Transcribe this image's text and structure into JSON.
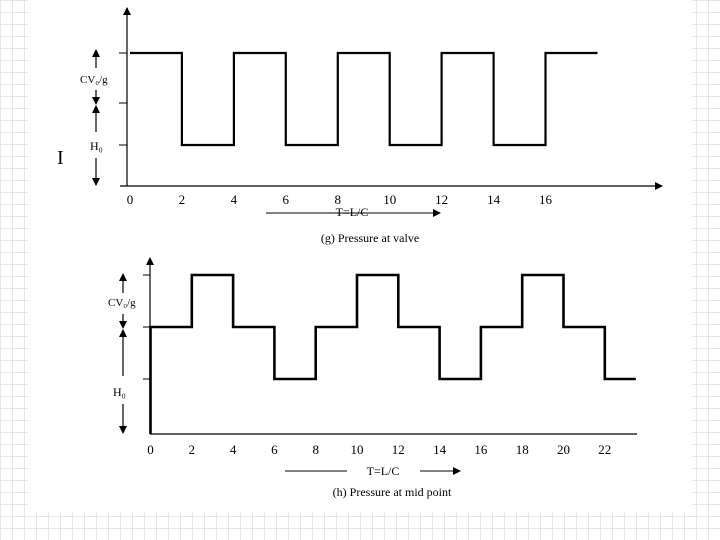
{
  "chart_data": [
    {
      "type": "line",
      "panel": "g",
      "caption": "(g) Pressure at valve",
      "x_ticks": [
        "0",
        "2",
        "4",
        "6",
        "8",
        "10",
        "12",
        "14",
        "16"
      ],
      "x_axis_label": "T=L/C",
      "y_labels": {
        "upper": "CV₀/g",
        "lower": "H₀"
      },
      "side_mark": "I",
      "xlim": [
        0,
        20.5
      ],
      "levels": {
        "low": 0,
        "mid": 1,
        "high": 2
      },
      "series": [
        {
          "x": [
            0,
            2,
            2,
            4,
            4,
            6,
            6,
            8,
            8,
            10,
            10,
            12,
            12,
            14,
            14,
            16,
            16,
            18
          ],
          "y": [
            2,
            2,
            0,
            0,
            2,
            2,
            0,
            0,
            2,
            2,
            0,
            0,
            2,
            2,
            0,
            0,
            2,
            2
          ]
        }
      ]
    },
    {
      "type": "line",
      "panel": "h",
      "caption": "(h) Pressure at mid point",
      "x_ticks": [
        "0",
        "2",
        "4",
        "6",
        "8",
        "10",
        "12",
        "14",
        "16",
        "18",
        "20",
        "22"
      ],
      "x_axis_label": "T=L/C",
      "y_labels": {
        "upper": "CV₀/g",
        "lower": "H₀"
      },
      "xlim": [
        0,
        23.5
      ],
      "levels": {
        "low": -1,
        "mid": 0,
        "high": 1,
        "base": -3
      },
      "series": [
        {
          "x": [
            0,
            0,
            2,
            2,
            4,
            4,
            6,
            6,
            8,
            8,
            10,
            10,
            12,
            12,
            14,
            14,
            16,
            16,
            18,
            18,
            20,
            20,
            22,
            22,
            23.5
          ],
          "y": [
            -3,
            0,
            0,
            1,
            1,
            0,
            0,
            -1,
            -1,
            0,
            0,
            1,
            1,
            0,
            0,
            -1,
            -1,
            0,
            0,
            1,
            1,
            0,
            0,
            -1,
            -1
          ]
        }
      ]
    }
  ]
}
